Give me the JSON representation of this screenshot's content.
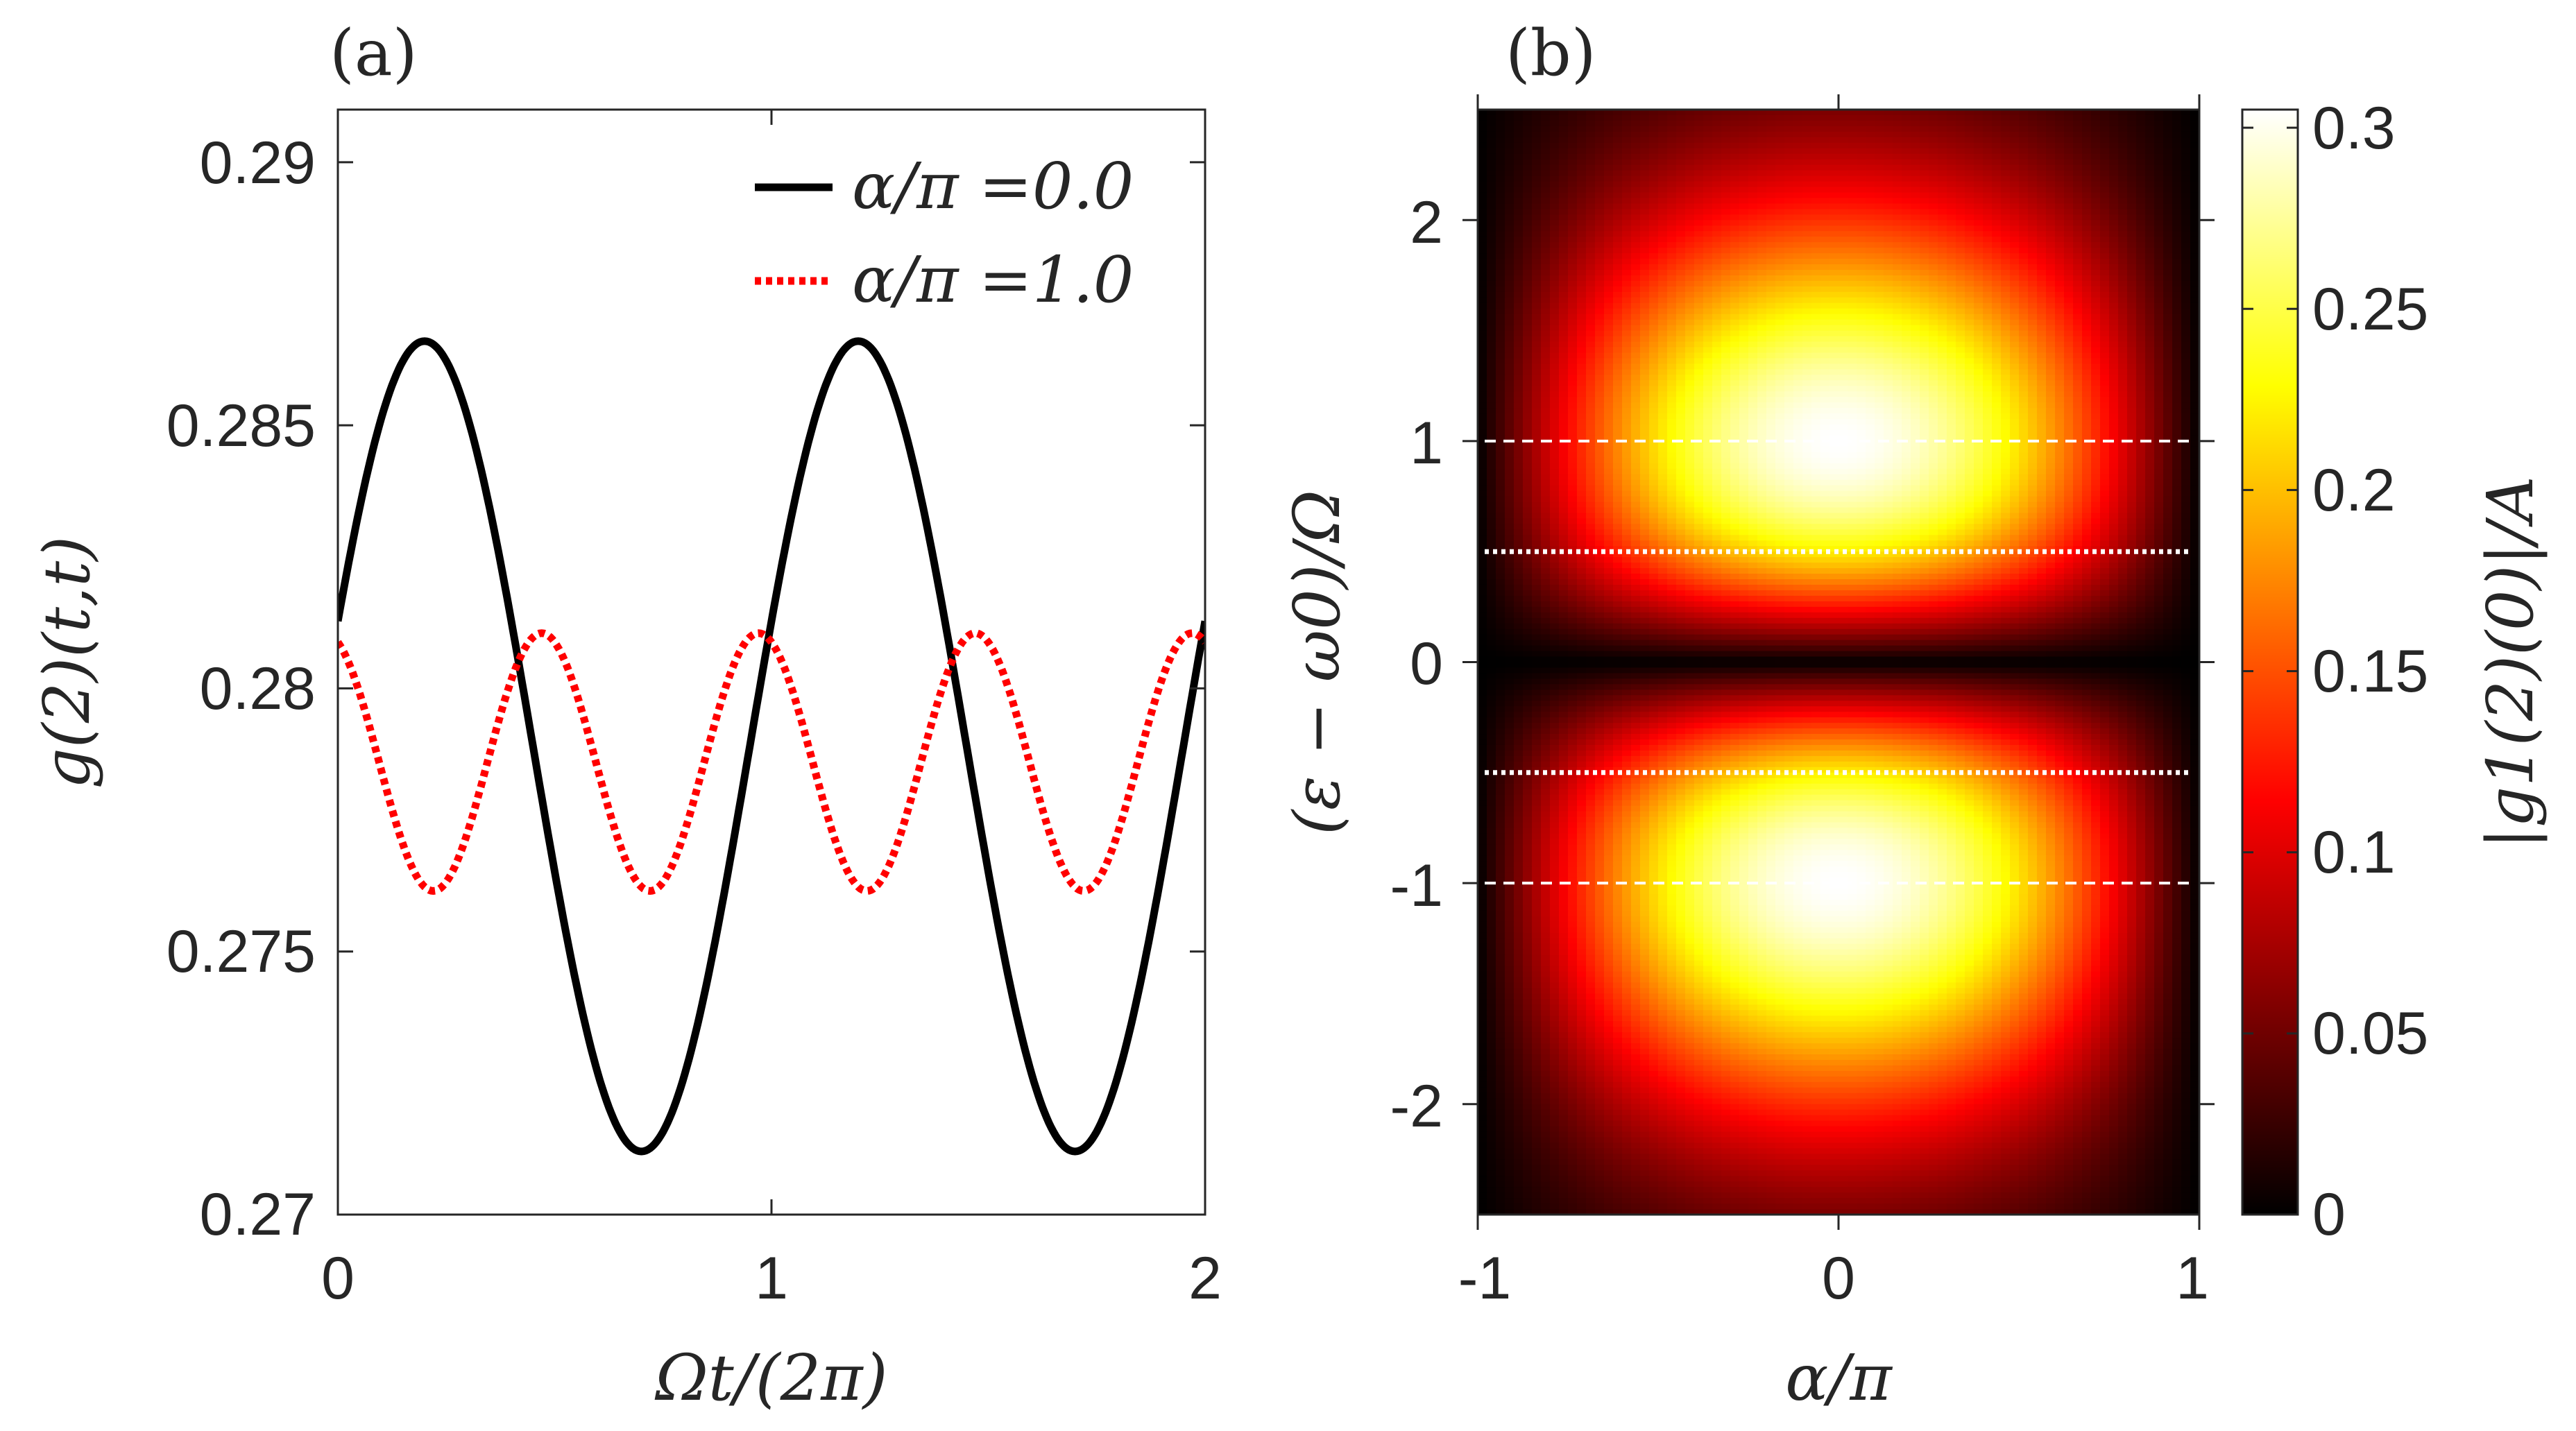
{
  "chart_data": [
    {
      "type": "line",
      "panel_label": "(a)",
      "xlabel": "Ωt/(2π)",
      "ylabel": "g(2)(t,t)",
      "xlim": [
        0,
        2
      ],
      "ylim": [
        0.27,
        0.291
      ],
      "xticks": [
        0,
        1,
        2
      ],
      "yticks": [
        0.27,
        0.275,
        0.28,
        0.285,
        0.29
      ],
      "xtick_labels": [
        "0",
        "1",
        "2"
      ],
      "ytick_labels": [
        "0.27",
        "0.275",
        "0.28",
        "0.285",
        "0.29"
      ],
      "legend_position": "top-right",
      "series": [
        {
          "name": "α/π =0.0",
          "legend_text": "α/π =0.0",
          "style": "solid",
          "color": "#000000",
          "model": "sine",
          "mean": 0.2789,
          "amplitude": 0.0077,
          "period": 1.0,
          "peak_x": 0.2
        },
        {
          "name": "α/π =1.0",
          "legend_text": "α/π =1.0",
          "style": "dotted",
          "color": "#ff0000",
          "model": "sine",
          "mean": 0.2786,
          "amplitude": 0.00245,
          "period": 0.5,
          "peak_x": 0.47
        }
      ]
    },
    {
      "type": "heatmap",
      "panel_label": "(b)",
      "xlabel": "α/π",
      "ylabel": "(ε − ω0)/Ω",
      "xlim": [
        -1,
        1
      ],
      "ylim": [
        -2.5,
        2.5
      ],
      "xticks": [
        -1,
        0,
        1
      ],
      "yticks": [
        -2,
        -1,
        0,
        1,
        2
      ],
      "xtick_labels": [
        "-1",
        "0",
        "1"
      ],
      "ytick_labels": [
        "-2",
        "-1",
        "0",
        "1",
        "2"
      ],
      "colormap": "hot",
      "colorbar_label": "|g1(2)(0)|/A",
      "colorbar_range": [
        0,
        0.305
      ],
      "colorbar_ticks": [
        0,
        0.05,
        0.1,
        0.15,
        0.2,
        0.25,
        0.3
      ],
      "colorbar_tick_labels": [
        "0",
        "0.05",
        "0.1",
        "0.15",
        "0.2",
        "0.25",
        "0.3"
      ],
      "peaks": [
        {
          "x": 0,
          "y": 1,
          "value": 0.305
        },
        {
          "x": 0,
          "y": -1,
          "value": 0.305
        }
      ],
      "zero_line_y": 0,
      "reference_lines": [
        {
          "y": 1,
          "style": "dashed",
          "color": "#ffffff"
        },
        {
          "y": 0.5,
          "style": "dotted",
          "color": "#ffffff"
        },
        {
          "y": -0.5,
          "style": "dotted",
          "color": "#ffffff"
        },
        {
          "y": -1,
          "style": "dashed",
          "color": "#ffffff"
        }
      ]
    }
  ]
}
